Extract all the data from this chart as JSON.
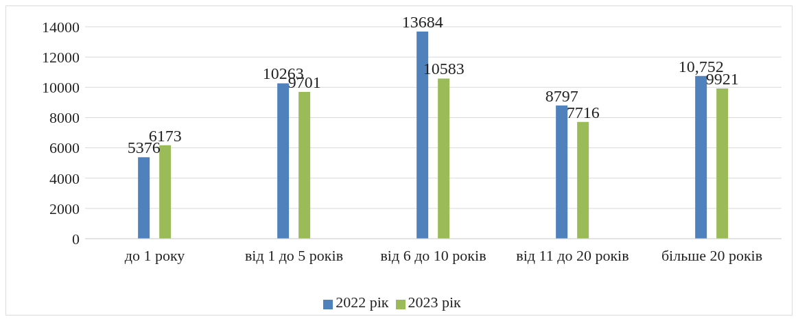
{
  "chart_data": {
    "type": "bar",
    "categories": [
      "до 1 року",
      "від 1 до 5 років",
      "від 6 до 10 років",
      "від 11 до 20 років",
      "більше 20 років"
    ],
    "series": [
      {
        "name": "2022 рік",
        "color": "#4f81bd",
        "values": [
          5376,
          10263,
          13684,
          8797,
          10752
        ],
        "value_labels": [
          "5376",
          "10263",
          "13684",
          "8797",
          "10,752"
        ]
      },
      {
        "name": "2023 рік",
        "color": "#9bbb59",
        "values": [
          6173,
          9701,
          10583,
          7716,
          9921
        ],
        "value_labels": [
          "6173",
          "9701",
          "10583",
          "7716",
          "9921"
        ]
      }
    ],
    "ylim": [
      0,
      14000
    ],
    "yticks": [
      0,
      2000,
      4000,
      6000,
      8000,
      10000,
      12000,
      14000
    ],
    "grid": "y",
    "legend": "bottom"
  }
}
